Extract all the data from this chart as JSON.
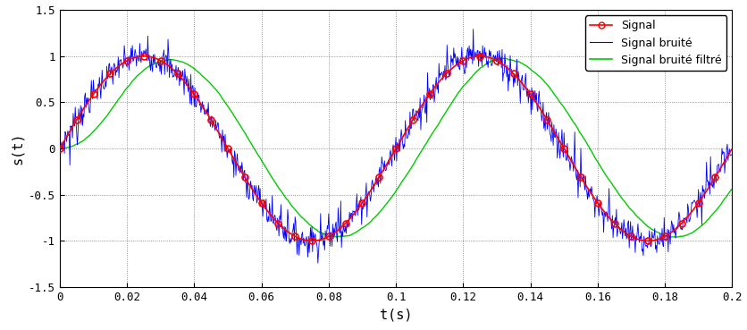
{
  "title": "",
  "xlabel": "t(s)",
  "ylabel": "s(t)",
  "xlim": [
    0,
    0.2
  ],
  "ylim": [
    -1.5,
    1.5
  ],
  "freq": 10,
  "n_points": 1000,
  "noise_amplitude": 0.08,
  "noise_spike_amplitude": 0.25,
  "noise_spike_prob": 0.04,
  "moving_avg_size": 80,
  "signal_color": "#ff0000",
  "noisy_color": "#0000ff",
  "filtered_color": "#00cc00",
  "legend_labels": [
    "Signal",
    "Signal bruité",
    "Signal bruité filtré"
  ],
  "xticks": [
    0,
    0.02,
    0.04,
    0.06,
    0.08,
    0.1,
    0.12,
    0.14,
    0.16,
    0.18,
    0.2
  ],
  "yticks": [
    -1.5,
    -1.0,
    -0.5,
    0,
    0.5,
    1.0,
    1.5
  ],
  "background_color": "#ffffff",
  "grid_color": "#555555",
  "circle_step": 25,
  "figwidth": 8.36,
  "figheight": 3.69,
  "dpi": 100
}
